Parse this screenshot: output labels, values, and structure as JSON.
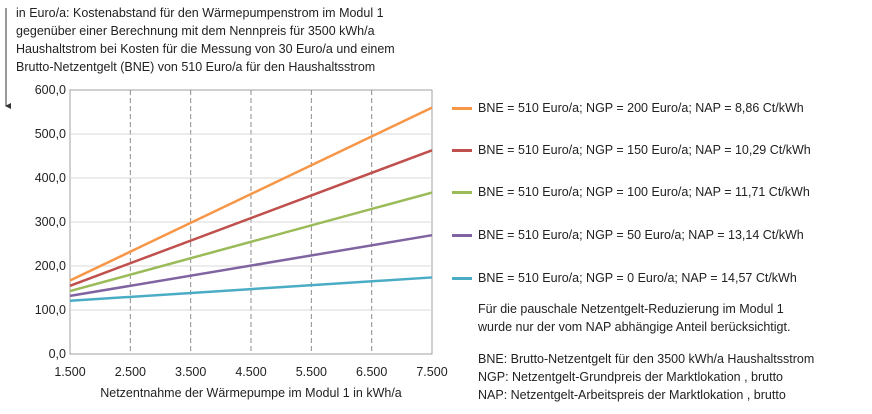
{
  "chart_data": {
    "type": "line",
    "ytitle_lines": [
      "in Euro/a:  Kostenabstand für den Wärmepumpenstrom  im Modul 1",
      "gegenüber  einer Berechnung  mit dem Nennpreis  für 3500 kWh/a",
      "Haushaltstrom  bei Kosten für die Messung von 30 Euro/a und einem",
      "Brutto-Netzentgelt  (BNE) von 510 Euro/a  für den Haushaltsstrom"
    ],
    "xlabel": "Netzentnahme  der Wärmepumpe  im Modul 1 in kWh/a",
    "xlim": [
      1500,
      7500
    ],
    "ylim": [
      0,
      600
    ],
    "xticks": [
      1500,
      2500,
      3500,
      4500,
      5500,
      6500,
      7500
    ],
    "xtick_labels": [
      "1.500",
      "2.500",
      "3.500",
      "4.500",
      "5.500",
      "6.500",
      "7.500"
    ],
    "yticks": [
      0,
      100,
      200,
      300,
      400,
      500,
      600
    ],
    "ytick_labels": [
      "0,0",
      "100,0",
      "200,0",
      "300,0",
      "400,0",
      "500,0",
      "600,0"
    ],
    "grid": true,
    "legend_position": "right",
    "series": [
      {
        "name": "BNE = 510 Euro/a; NGP = 200 Euro/a; NAP = 8,86 Ct/kWh",
        "color": "#f79646",
        "x": [
          1500,
          7500
        ],
        "y": [
          167,
          560
        ]
      },
      {
        "name": "BNE = 510 Euro/a; NGP = 150 Euro/a; NAP = 10,29 Ct/kWh",
        "color": "#c0504d",
        "x": [
          1500,
          7500
        ],
        "y": [
          155,
          463
        ]
      },
      {
        "name": "BNE = 510 Euro/a; NGP = 100 Euro/a; NAP = 11,71 Ct/kWh",
        "color": "#9bbb59",
        "x": [
          1500,
          7500
        ],
        "y": [
          143,
          367
        ]
      },
      {
        "name": "BNE = 510 Euro/a; NGP = 50 Euro/a; NAP = 13,14 Ct/kWh",
        "color": "#8064a2",
        "x": [
          1500,
          7500
        ],
        "y": [
          132,
          270
        ]
      },
      {
        "name": "BNE = 510 Euro/a; NGP = 0 Euro/a; NAP = 14,57 Ct/kWh",
        "color": "#4bacc6",
        "x": [
          1500,
          7500
        ],
        "y": [
          121,
          174
        ]
      }
    ]
  },
  "notes": {
    "note1_lines": [
      "Für die pauschale Netzentgelt-Reduzierung  im Modul 1",
      "wurde nur der vom NAP abhängige Anteil berücksichtigt."
    ],
    "note2_lines": [
      "BNE: Brutto-Netzentgelt  für den 3500 kWh/a Haushaltsstrom",
      "NGP: Netzentgelt-Grundpreis  der Marktlokation , brutto",
      "NAP: Netzentgelt-Arbeitspreis  der Marktlokation , brutto"
    ]
  }
}
